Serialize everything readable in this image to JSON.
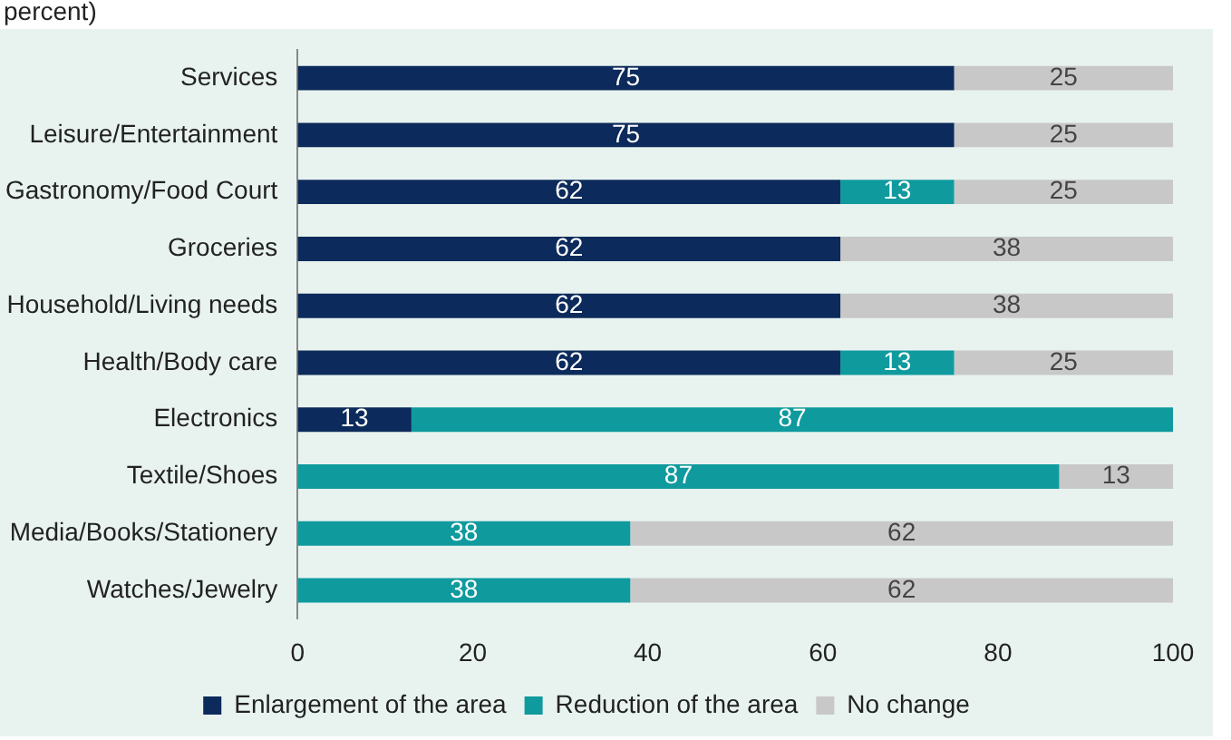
{
  "chart_data": {
    "type": "bar",
    "orientation": "horizontal",
    "stacked": true,
    "subtitle": "percent)",
    "categories": [
      "Services",
      "Leisure/Entertainment",
      "Gastronomy/Food Court",
      "Groceries",
      "Household/Living needs",
      "Health/Body care",
      "Electronics",
      "Textile/Shoes",
      "Media/Books/Stationery",
      "Watches/Jewelry"
    ],
    "series": [
      {
        "name": "Enlargement of the area",
        "color": "#0c2a5b",
        "values": [
          75,
          75,
          62,
          62,
          62,
          62,
          13,
          null,
          null,
          null
        ]
      },
      {
        "name": "Reduction of the area",
        "color": "#0f9a9e",
        "values": [
          null,
          null,
          13,
          null,
          null,
          13,
          87,
          87,
          38,
          38
        ]
      },
      {
        "name": "No change",
        "color": "#c8c8c8",
        "values": [
          25,
          25,
          25,
          38,
          38,
          25,
          null,
          13,
          62,
          62
        ]
      }
    ],
    "xlim": [
      0,
      100
    ],
    "xticks": [
      0,
      20,
      40,
      60,
      80,
      100
    ],
    "grid": false,
    "legend": "bottom",
    "data_labels": true
  }
}
